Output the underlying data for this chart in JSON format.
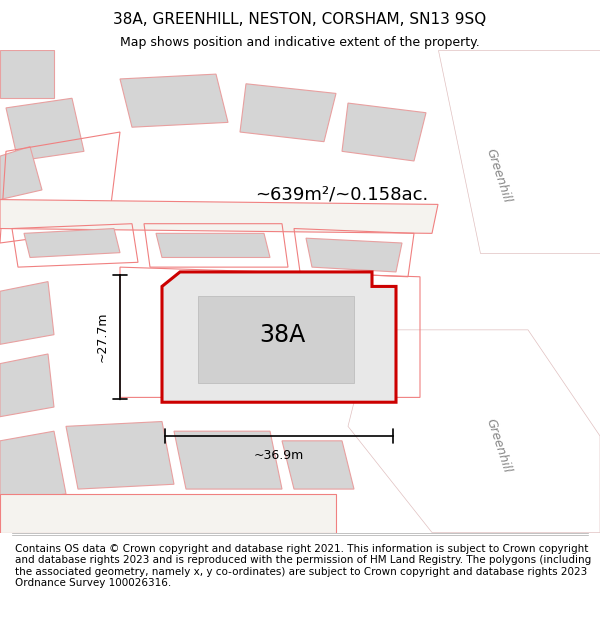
{
  "title": "38A, GREENHILL, NESTON, CORSHAM, SN13 9SQ",
  "subtitle": "Map shows position and indicative extent of the property.",
  "footer": "Contains OS data © Crown copyright and database right 2021. This information is subject to Crown copyright and database rights 2023 and is reproduced with the permission of HM Land Registry. The polygons (including the associated geometry, namely x, y co-ordinates) are subject to Crown copyright and database rights 2023 Ordnance Survey 100026316.",
  "area_label": "~639m²/~0.158ac.",
  "plot_label": "38A",
  "dim_width": "~36.9m",
  "dim_height": "~27.7m",
  "street_label_1": "Greenhill",
  "street_label_2": "Greenhill",
  "map_bg": "#f0eeea",
  "plot_fill": "#e8e8e8",
  "plot_outline": "#cc0000",
  "building_fill": "#d0d0d0",
  "road_fill": "#ffffff",
  "other_outline": "#f08080",
  "title_fontsize": 11,
  "subtitle_fontsize": 9,
  "footer_fontsize": 7.5
}
